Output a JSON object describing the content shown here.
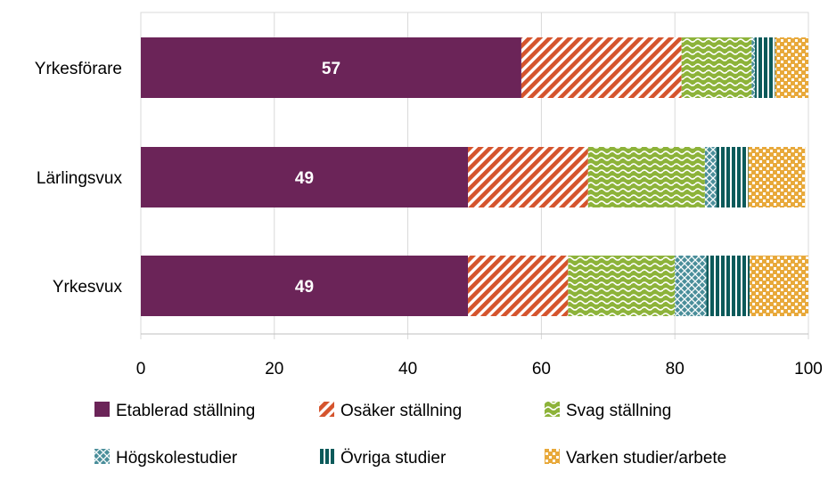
{
  "chart_data": {
    "type": "bar",
    "orientation": "horizontal",
    "stacked": true,
    "categories": [
      "Yrkesförare",
      "Lärlingsvux",
      "Yrkesvux"
    ],
    "series": [
      {
        "name": "Etablerad ställning",
        "values": [
          57,
          49,
          49
        ],
        "color": "#6b2458",
        "pattern": "solid"
      },
      {
        "name": "Osäker ställning",
        "values": [
          24,
          18,
          15
        ],
        "color": "#d5542d",
        "pattern": "diagonal-stripes"
      },
      {
        "name": "Svag ställning",
        "values": [
          10.5,
          17.5,
          16
        ],
        "color": "#8db33a",
        "pattern": "waves"
      },
      {
        "name": "Högskolestudier",
        "values": [
          0.5,
          1.7,
          4.7
        ],
        "color": "#4a8e9a",
        "pattern": "crosshatch"
      },
      {
        "name": "Övriga studier",
        "values": [
          3,
          4.8,
          6.5
        ],
        "color": "#0c5a5a",
        "pattern": "vertical-stripes"
      },
      {
        "name": "Varken studier/arbete",
        "values": [
          5,
          8.5,
          8.8
        ],
        "color": "#e8a93b",
        "pattern": "checker"
      }
    ],
    "data_labels": [
      {
        "category": "Yrkesförare",
        "value": "57"
      },
      {
        "category": "Lärlingsvux",
        "value": "49"
      },
      {
        "category": "Yrkesvux",
        "value": "49"
      }
    ],
    "xlim": [
      0,
      100
    ],
    "xticks": [
      "0",
      "20",
      "40",
      "60",
      "80",
      "100"
    ],
    "grid": "vertical",
    "legend": "bottom",
    "title": "",
    "xlabel": "",
    "ylabel": ""
  }
}
